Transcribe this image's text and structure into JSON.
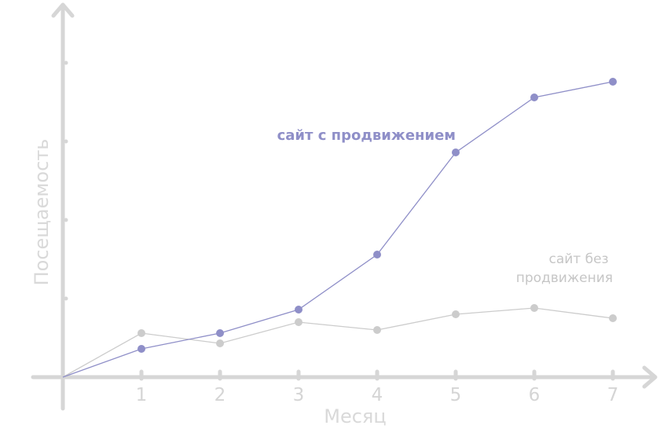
{
  "chart_data": {
    "type": "line",
    "x": [
      0,
      1,
      2,
      3,
      4,
      5,
      6,
      7
    ],
    "x_tick_labels": [
      "1",
      "2",
      "3",
      "4",
      "5",
      "6",
      "7"
    ],
    "xlabel": "Месяц",
    "ylabel": "Посещаемость",
    "xlim": [
      0,
      7.5
    ],
    "ylim": [
      0,
      4
    ],
    "y_ticks": [
      1,
      2,
      3,
      4
    ],
    "grid": false,
    "series": [
      {
        "name": "сайт с продвижением",
        "color": "#8f8fc8",
        "values": [
          0,
          0.36,
          0.56,
          0.86,
          1.56,
          2.86,
          3.56,
          3.76
        ]
      },
      {
        "name": "сайт без продвижения",
        "name_lines": [
          "сайт без",
          "продвижения"
        ],
        "color": "#cccccc",
        "values": [
          0,
          0.56,
          0.43,
          0.7,
          0.6,
          0.8,
          0.88,
          0.75
        ]
      }
    ],
    "axis_color": "#d6d6d6"
  }
}
